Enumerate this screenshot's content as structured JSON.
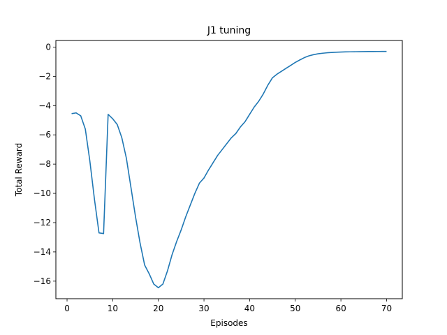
{
  "chart_data": {
    "type": "line",
    "title": "J1 tuning",
    "xlabel": "Episodes",
    "ylabel": "Total Reward",
    "xlim": [
      -2.45,
      73.45
    ],
    "ylim": [
      -17.2,
      0.45
    ],
    "xticks": [
      0,
      10,
      20,
      30,
      40,
      50,
      60,
      70
    ],
    "yticks": [
      0,
      -2,
      -4,
      -6,
      -8,
      -10,
      -12,
      -14,
      -16
    ],
    "grid": false,
    "series": [
      {
        "name": "Total Reward",
        "color": "#1f77b4",
        "x": [
          1,
          2,
          3,
          4,
          5,
          6,
          7,
          8,
          9,
          10,
          11,
          12,
          13,
          14,
          15,
          16,
          17,
          18,
          19,
          20,
          21,
          22,
          23,
          24,
          25,
          26,
          27,
          28,
          29,
          30,
          31,
          32,
          33,
          34,
          35,
          36,
          37,
          38,
          39,
          40,
          41,
          42,
          43,
          44,
          45,
          46,
          47,
          48,
          49,
          50,
          51,
          52,
          53,
          54,
          55,
          56,
          57,
          58,
          59,
          60,
          61,
          62,
          63,
          64,
          65,
          66,
          67,
          68,
          69,
          70
        ],
        "values": [
          -4.55,
          -4.5,
          -4.7,
          -5.6,
          -7.8,
          -10.4,
          -12.7,
          -12.75,
          -4.6,
          -4.9,
          -5.3,
          -6.2,
          -7.6,
          -9.6,
          -11.6,
          -13.4,
          -14.9,
          -15.5,
          -16.2,
          -16.45,
          -16.2,
          -15.3,
          -14.2,
          -13.3,
          -12.5,
          -11.6,
          -10.8,
          -10.0,
          -9.3,
          -8.95,
          -8.4,
          -7.9,
          -7.4,
          -7.0,
          -6.6,
          -6.2,
          -5.9,
          -5.45,
          -5.1,
          -4.6,
          -4.1,
          -3.7,
          -3.2,
          -2.6,
          -2.1,
          -1.85,
          -1.65,
          -1.45,
          -1.25,
          -1.05,
          -0.88,
          -0.72,
          -0.6,
          -0.52,
          -0.46,
          -0.42,
          -0.39,
          -0.37,
          -0.35,
          -0.34,
          -0.33,
          -0.325,
          -0.32,
          -0.315,
          -0.31,
          -0.305,
          -0.303,
          -0.301,
          -0.3,
          -0.3
        ]
      }
    ]
  }
}
